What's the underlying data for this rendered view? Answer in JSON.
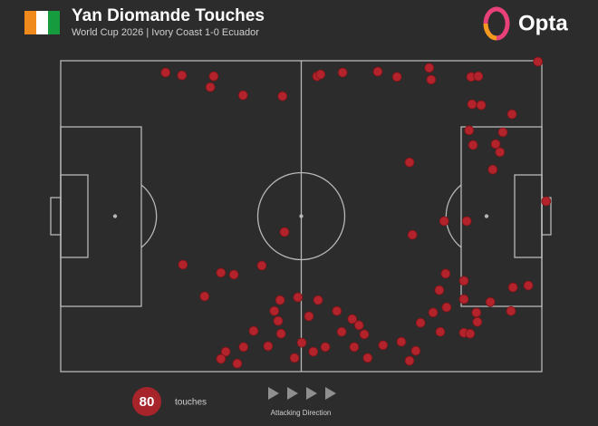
{
  "chart_data": {
    "type": "scatter",
    "title": "Yan Diomande Touches",
    "subtitle": "World Cup 2026 | Ivory Coast 1-0 Ecuador",
    "brand": "Opta",
    "touch_count": 80,
    "touch_label": "touches",
    "direction_label": "Attacking Direction",
    "color": "#b3232b",
    "xlim": [
      0,
      100
    ],
    "ylim": [
      0,
      100
    ],
    "x": [
      21.8,
      25.2,
      31.8,
      31.1,
      37.9,
      46.1,
      53.3,
      54.0,
      58.6,
      65.9,
      69.9,
      76.6,
      77.0,
      85.3,
      86.8,
      99.2,
      85.5,
      87.4,
      93.8,
      84.9,
      91.9,
      85.7,
      90.4,
      91.3,
      72.5,
      89.8,
      100.9,
      79.7,
      84.4,
      73.1,
      46.5,
      25.4,
      33.3,
      36.0,
      41.8,
      80.0,
      83.8,
      29.9,
      78.7,
      94.0,
      97.2,
      45.6,
      49.3,
      53.5,
      83.8,
      89.3,
      80.2,
      44.4,
      57.4,
      77.4,
      51.6,
      86.4,
      93.6,
      45.2,
      60.6,
      86.6,
      74.8,
      62.0,
      40.1,
      45.8,
      58.4,
      63.1,
      78.9,
      83.8,
      85.1,
      50.1,
      70.8,
      67.0,
      61.0,
      55.0,
      38.0,
      43.1,
      34.3,
      52.5,
      73.8,
      33.3,
      48.6,
      36.7,
      63.8,
      72.5
    ],
    "values": [
      96.2,
      95.3,
      95.0,
      91.5,
      88.9,
      88.6,
      95.0,
      95.6,
      96.2,
      96.5,
      94.8,
      97.7,
      93.9,
      94.8,
      95.0,
      99.7,
      86.0,
      85.7,
      82.8,
      77.6,
      77.0,
      72.9,
      73.2,
      70.6,
      67.3,
      65.0,
      54.8,
      48.4,
      48.4,
      44.0,
      44.9,
      34.4,
      31.8,
      31.2,
      34.1,
      31.5,
      29.2,
      24.2,
      26.2,
      27.1,
      27.7,
      23.0,
      23.9,
      23.0,
      23.3,
      22.4,
      20.7,
      19.5,
      19.5,
      19.0,
      17.8,
      19.0,
      19.5,
      16.3,
      16.9,
      16.0,
      15.7,
      14.9,
      13.1,
      12.2,
      12.8,
      12.0,
      12.8,
      12.5,
      12.2,
      9.3,
      9.6,
      8.5,
      7.9,
      7.9,
      7.9,
      8.2,
      6.4,
      6.4,
      6.7,
      4.1,
      4.4,
      2.6,
      4.4,
      3.5
    ]
  }
}
